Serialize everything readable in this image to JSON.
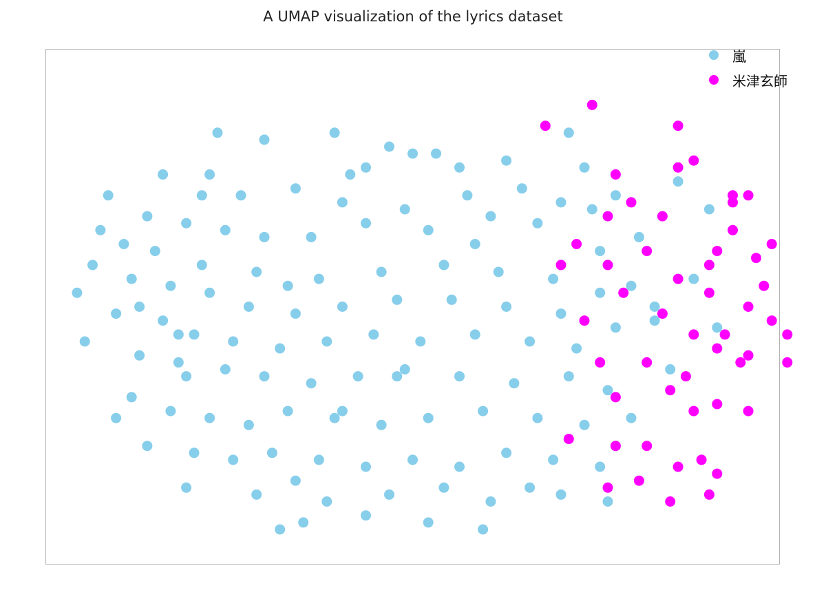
{
  "chart_data": {
    "type": "scatter",
    "title": "A UMAP visualization of the lyrics dataset",
    "xlabel": "",
    "ylabel": "",
    "xlim": [
      -4.7,
      4.7
    ],
    "ylim": [
      -3.7,
      3.7
    ],
    "grid": false,
    "legend_position": "top-right",
    "series": [
      {
        "name": "嵐",
        "color": "#87CEEB",
        "points": [
          [
            -2.5,
            2.5
          ],
          [
            -1.9,
            2.4
          ],
          [
            -1.0,
            2.5
          ],
          [
            -0.3,
            2.3
          ],
          [
            0.3,
            2.2
          ],
          [
            0.6,
            2.0
          ],
          [
            -3.2,
            1.9
          ],
          [
            -2.7,
            1.6
          ],
          [
            -2.2,
            1.6
          ],
          [
            -1.5,
            1.7
          ],
          [
            -0.9,
            1.5
          ],
          [
            -0.1,
            1.4
          ],
          [
            0.7,
            1.6
          ],
          [
            1.4,
            1.7
          ],
          [
            1.9,
            1.5
          ],
          [
            -3.4,
            1.3
          ],
          [
            -2.9,
            1.2
          ],
          [
            -2.4,
            1.1
          ],
          [
            -1.9,
            1.0
          ],
          [
            -1.3,
            1.0
          ],
          [
            -0.6,
            1.2
          ],
          [
            0.2,
            1.1
          ],
          [
            1.0,
            1.3
          ],
          [
            1.6,
            1.2
          ],
          [
            2.3,
            1.4
          ],
          [
            2.6,
            1.6
          ],
          [
            -4.0,
            1.1
          ],
          [
            -3.7,
            0.9
          ],
          [
            -3.3,
            0.8
          ],
          [
            -2.7,
            0.6
          ],
          [
            -2.0,
            0.5
          ],
          [
            -1.2,
            0.4
          ],
          [
            -0.4,
            0.5
          ],
          [
            0.4,
            0.6
          ],
          [
            1.1,
            0.5
          ],
          [
            1.8,
            0.4
          ],
          [
            2.4,
            0.8
          ],
          [
            2.9,
            1.0
          ],
          [
            -4.1,
            0.6
          ],
          [
            -3.6,
            0.4
          ],
          [
            -3.1,
            0.3
          ],
          [
            -2.6,
            0.2
          ],
          [
            -2.1,
            0.0
          ],
          [
            -1.5,
            -0.1
          ],
          [
            -0.9,
            0.0
          ],
          [
            -0.2,
            0.1
          ],
          [
            0.5,
            0.1
          ],
          [
            1.2,
            0.0
          ],
          [
            1.9,
            -0.1
          ],
          [
            2.4,
            0.2
          ],
          [
            2.8,
            0.3
          ],
          [
            -4.3,
            0.2
          ],
          [
            -3.8,
            -0.1
          ],
          [
            -3.2,
            -0.2
          ],
          [
            -2.8,
            -0.4
          ],
          [
            -2.3,
            -0.5
          ],
          [
            -1.7,
            -0.6
          ],
          [
            -1.1,
            -0.5
          ],
          [
            -0.5,
            -0.4
          ],
          [
            0.1,
            -0.5
          ],
          [
            0.8,
            -0.4
          ],
          [
            1.5,
            -0.5
          ],
          [
            2.1,
            -0.6
          ],
          [
            2.6,
            -0.3
          ],
          [
            3.1,
            -0.2
          ],
          [
            -4.2,
            -0.5
          ],
          [
            -3.5,
            -0.7
          ],
          [
            -3.0,
            -0.8
          ],
          [
            -2.4,
            -0.9
          ],
          [
            -1.9,
            -1.0
          ],
          [
            -1.3,
            -1.1
          ],
          [
            -0.7,
            -1.0
          ],
          [
            -0.1,
            -0.9
          ],
          [
            0.6,
            -1.0
          ],
          [
            1.3,
            -1.1
          ],
          [
            2.0,
            -1.0
          ],
          [
            2.5,
            -1.2
          ],
          [
            3.3,
            -0.9
          ],
          [
            -3.6,
            -1.3
          ],
          [
            -3.1,
            -1.5
          ],
          [
            -2.6,
            -1.6
          ],
          [
            -2.1,
            -1.7
          ],
          [
            -1.6,
            -1.5
          ],
          [
            -1.0,
            -1.6
          ],
          [
            -0.4,
            -1.7
          ],
          [
            0.2,
            -1.6
          ],
          [
            0.9,
            -1.5
          ],
          [
            1.6,
            -1.6
          ],
          [
            2.2,
            -1.7
          ],
          [
            2.8,
            -1.6
          ],
          [
            -3.4,
            -2.0
          ],
          [
            -2.8,
            -2.1
          ],
          [
            -2.3,
            -2.2
          ],
          [
            -1.8,
            -2.1
          ],
          [
            -1.2,
            -2.2
          ],
          [
            -0.6,
            -2.3
          ],
          [
            0.0,
            -2.2
          ],
          [
            0.6,
            -2.3
          ],
          [
            1.2,
            -2.1
          ],
          [
            1.8,
            -2.2
          ],
          [
            2.4,
            -2.3
          ],
          [
            -2.9,
            -2.6
          ],
          [
            -2.0,
            -2.7
          ],
          [
            -1.1,
            -2.8
          ],
          [
            -0.3,
            -2.7
          ],
          [
            0.4,
            -2.6
          ],
          [
            1.0,
            -2.8
          ],
          [
            1.9,
            -2.7
          ],
          [
            2.5,
            -2.8
          ],
          [
            -1.7,
            -3.2
          ],
          [
            -1.4,
            -3.1
          ],
          [
            -0.6,
            -3.0
          ],
          [
            0.2,
            -3.1
          ],
          [
            0.9,
            -3.2
          ],
          [
            3.4,
            1.8
          ],
          [
            3.8,
            1.4
          ],
          [
            3.1,
            0.0
          ],
          [
            3.9,
            -0.3
          ],
          [
            2.0,
            2.5
          ],
          [
            -0.6,
            2.0
          ],
          [
            -3.8,
            -1.6
          ],
          [
            -3.5,
            0.0
          ],
          [
            -1.6,
            0.3
          ],
          [
            1.5,
            -2.6
          ],
          [
            -0.2,
            -1.0
          ],
          [
            0.8,
            0.9
          ],
          [
            -2.9,
            -1.0
          ],
          [
            -1.5,
            -2.5
          ],
          [
            2.6,
            -2.0
          ],
          [
            3.6,
            0.4
          ],
          [
            -0.8,
            1.9
          ],
          [
            1.2,
            2.1
          ],
          [
            -3.9,
            1.6
          ],
          [
            -2.6,
            1.9
          ],
          [
            0.0,
            2.2
          ],
          [
            2.2,
            2.0
          ],
          [
            -3.0,
            -0.4
          ],
          [
            -0.9,
            -1.5
          ]
        ]
      },
      {
        "name": "米津玄師",
        "color": "#FF00FF",
        "points": [
          [
            1.7,
            2.6
          ],
          [
            2.3,
            2.9
          ],
          [
            2.6,
            1.9
          ],
          [
            3.4,
            2.0
          ],
          [
            3.6,
            2.1
          ],
          [
            4.1,
            1.6
          ],
          [
            4.3,
            1.6
          ],
          [
            3.2,
            1.3
          ],
          [
            3.0,
            0.8
          ],
          [
            3.8,
            0.6
          ],
          [
            4.4,
            0.7
          ],
          [
            4.1,
            1.1
          ],
          [
            4.5,
            0.3
          ],
          [
            2.1,
            0.9
          ],
          [
            1.9,
            0.6
          ],
          [
            3.4,
            0.4
          ],
          [
            3.8,
            0.2
          ],
          [
            4.3,
            0.0
          ],
          [
            4.6,
            -0.2
          ],
          [
            2.5,
            0.6
          ],
          [
            3.2,
            -0.1
          ],
          [
            3.6,
            -0.4
          ],
          [
            4.0,
            -0.4
          ],
          [
            4.2,
            -0.8
          ],
          [
            4.8,
            -0.4
          ],
          [
            2.4,
            -0.8
          ],
          [
            3.0,
            -0.8
          ],
          [
            3.5,
            -1.0
          ],
          [
            3.9,
            -0.6
          ],
          [
            4.3,
            -0.7
          ],
          [
            4.8,
            -0.8
          ],
          [
            2.6,
            -1.3
          ],
          [
            3.3,
            -1.2
          ],
          [
            3.6,
            -1.5
          ],
          [
            3.9,
            -1.4
          ],
          [
            4.3,
            -1.5
          ],
          [
            2.0,
            -1.9
          ],
          [
            2.6,
            -2.0
          ],
          [
            3.0,
            -2.0
          ],
          [
            3.4,
            -2.3
          ],
          [
            3.7,
            -2.2
          ],
          [
            3.9,
            -2.4
          ],
          [
            2.5,
            -2.6
          ],
          [
            2.9,
            -2.5
          ],
          [
            3.3,
            -2.8
          ],
          [
            3.8,
            -2.7
          ],
          [
            2.8,
            1.5
          ],
          [
            2.2,
            -0.2
          ],
          [
            2.5,
            1.3
          ],
          [
            3.4,
            2.6
          ],
          [
            3.9,
            0.8
          ],
          [
            4.1,
            1.5
          ],
          [
            4.6,
            0.9
          ],
          [
            2.7,
            0.2
          ]
        ]
      }
    ]
  }
}
